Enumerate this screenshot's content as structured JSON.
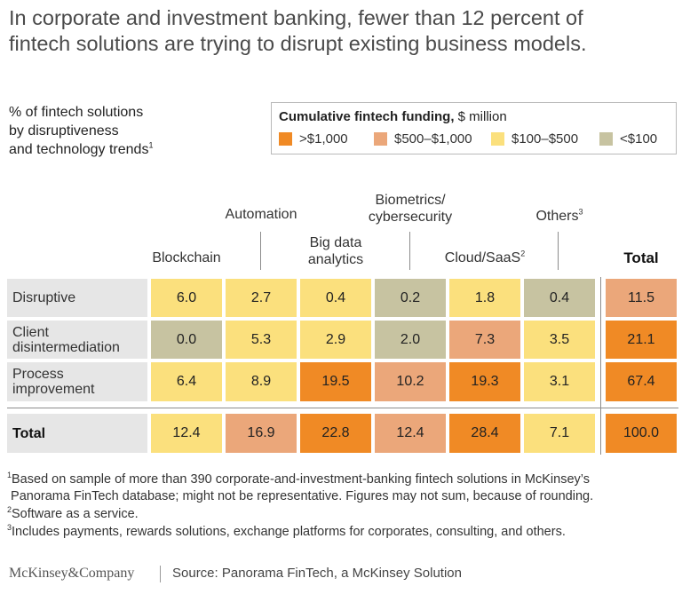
{
  "title_line1": "In corporate and investment banking, fewer than 12 percent of",
  "title_line2": "fintech solutions are trying to disrupt existing business models.",
  "subtitle_line1": "% of fintech solutions",
  "subtitle_line2": "by disruptiveness",
  "subtitle_line3": "and technology trends",
  "subtitle_sup": "1",
  "legend": {
    "title_bold": "Cumulative fintech funding,",
    "title_rest": " $ million",
    "items": [
      {
        "label": ">$1,000",
        "color": "#f08a25"
      },
      {
        "label": "$500–$1,000",
        "color": "#eba77a"
      },
      {
        "label": "$100–$500",
        "color": "#fbe07d"
      },
      {
        "label": "<$100",
        "color": "#c7c3a1"
      }
    ]
  },
  "chart_data": {
    "type": "table",
    "columns": [
      {
        "label": "Blockchain",
        "sup": ""
      },
      {
        "label": "Automation",
        "sup": ""
      },
      {
        "label_line1": "Big data",
        "label_line2": "analytics",
        "sup": ""
      },
      {
        "label_line1": "Biometrics/",
        "label_line2": "cybersecurity",
        "sup": ""
      },
      {
        "label": "Cloud/SaaS",
        "sup": "2"
      },
      {
        "label": "Others",
        "sup": "3"
      }
    ],
    "total_label": "Total",
    "rows": [
      {
        "label_line1": "Disruptive",
        "label_line2": "",
        "values": [
          "6.0",
          "2.7",
          "0.4",
          "0.2",
          "1.8",
          "0.4"
        ],
        "total": "11.5",
        "funding": [
          "$100–$500",
          "$100–$500",
          "$100–$500",
          "<$100",
          "$100–$500",
          "<$100"
        ],
        "total_funding": "$500–$1,000"
      },
      {
        "label_line1": "Client",
        "label_line2": "disintermediation",
        "values": [
          "0.0",
          "5.3",
          "2.9",
          "2.0",
          "7.3",
          "3.5"
        ],
        "total": "21.1",
        "funding": [
          "<$100",
          "$100–$500",
          "$100–$500",
          "<$100",
          "$500–$1,000",
          "$100–$500"
        ],
        "total_funding": ">$1,000"
      },
      {
        "label_line1": "Process",
        "label_line2": "improvement",
        "values": [
          "6.4",
          "8.9",
          "19.5",
          "10.2",
          "19.3",
          "3.1"
        ],
        "total": "67.4",
        "funding": [
          "$100–$500",
          "$100–$500",
          ">$1,000",
          "$500–$1,000",
          ">$1,000",
          "$100–$500"
        ],
        "total_funding": ">$1,000"
      }
    ],
    "total_row": {
      "label": "Total",
      "values": [
        "12.4",
        "16.9",
        "22.8",
        "12.4",
        "28.4",
        "7.1"
      ],
      "total": "100.0",
      "funding": [
        "$100–$500",
        "$500–$1,000",
        ">$1,000",
        "$500–$1,000",
        ">$1,000",
        "$100–$500"
      ],
      "total_funding": ">$1,000"
    }
  },
  "footnotes": {
    "fn1_sup": "1",
    "fn1_line1": "Based on sample of more than 390 corporate-and-investment-banking fintech solutions in McKinsey’s",
    "fn1_line2": " Panorama FinTech database; might not be representative. Figures may not sum, because of rounding.",
    "fn2_sup": "2",
    "fn2": "Software as a service.",
    "fn3_sup": "3",
    "fn3": "Includes payments, rewards solutions, exchange platforms for corporates, consulting, and others."
  },
  "logo": "McKinsey&Company",
  "source": "Source: Panorama FinTech, a McKinsey Solution"
}
